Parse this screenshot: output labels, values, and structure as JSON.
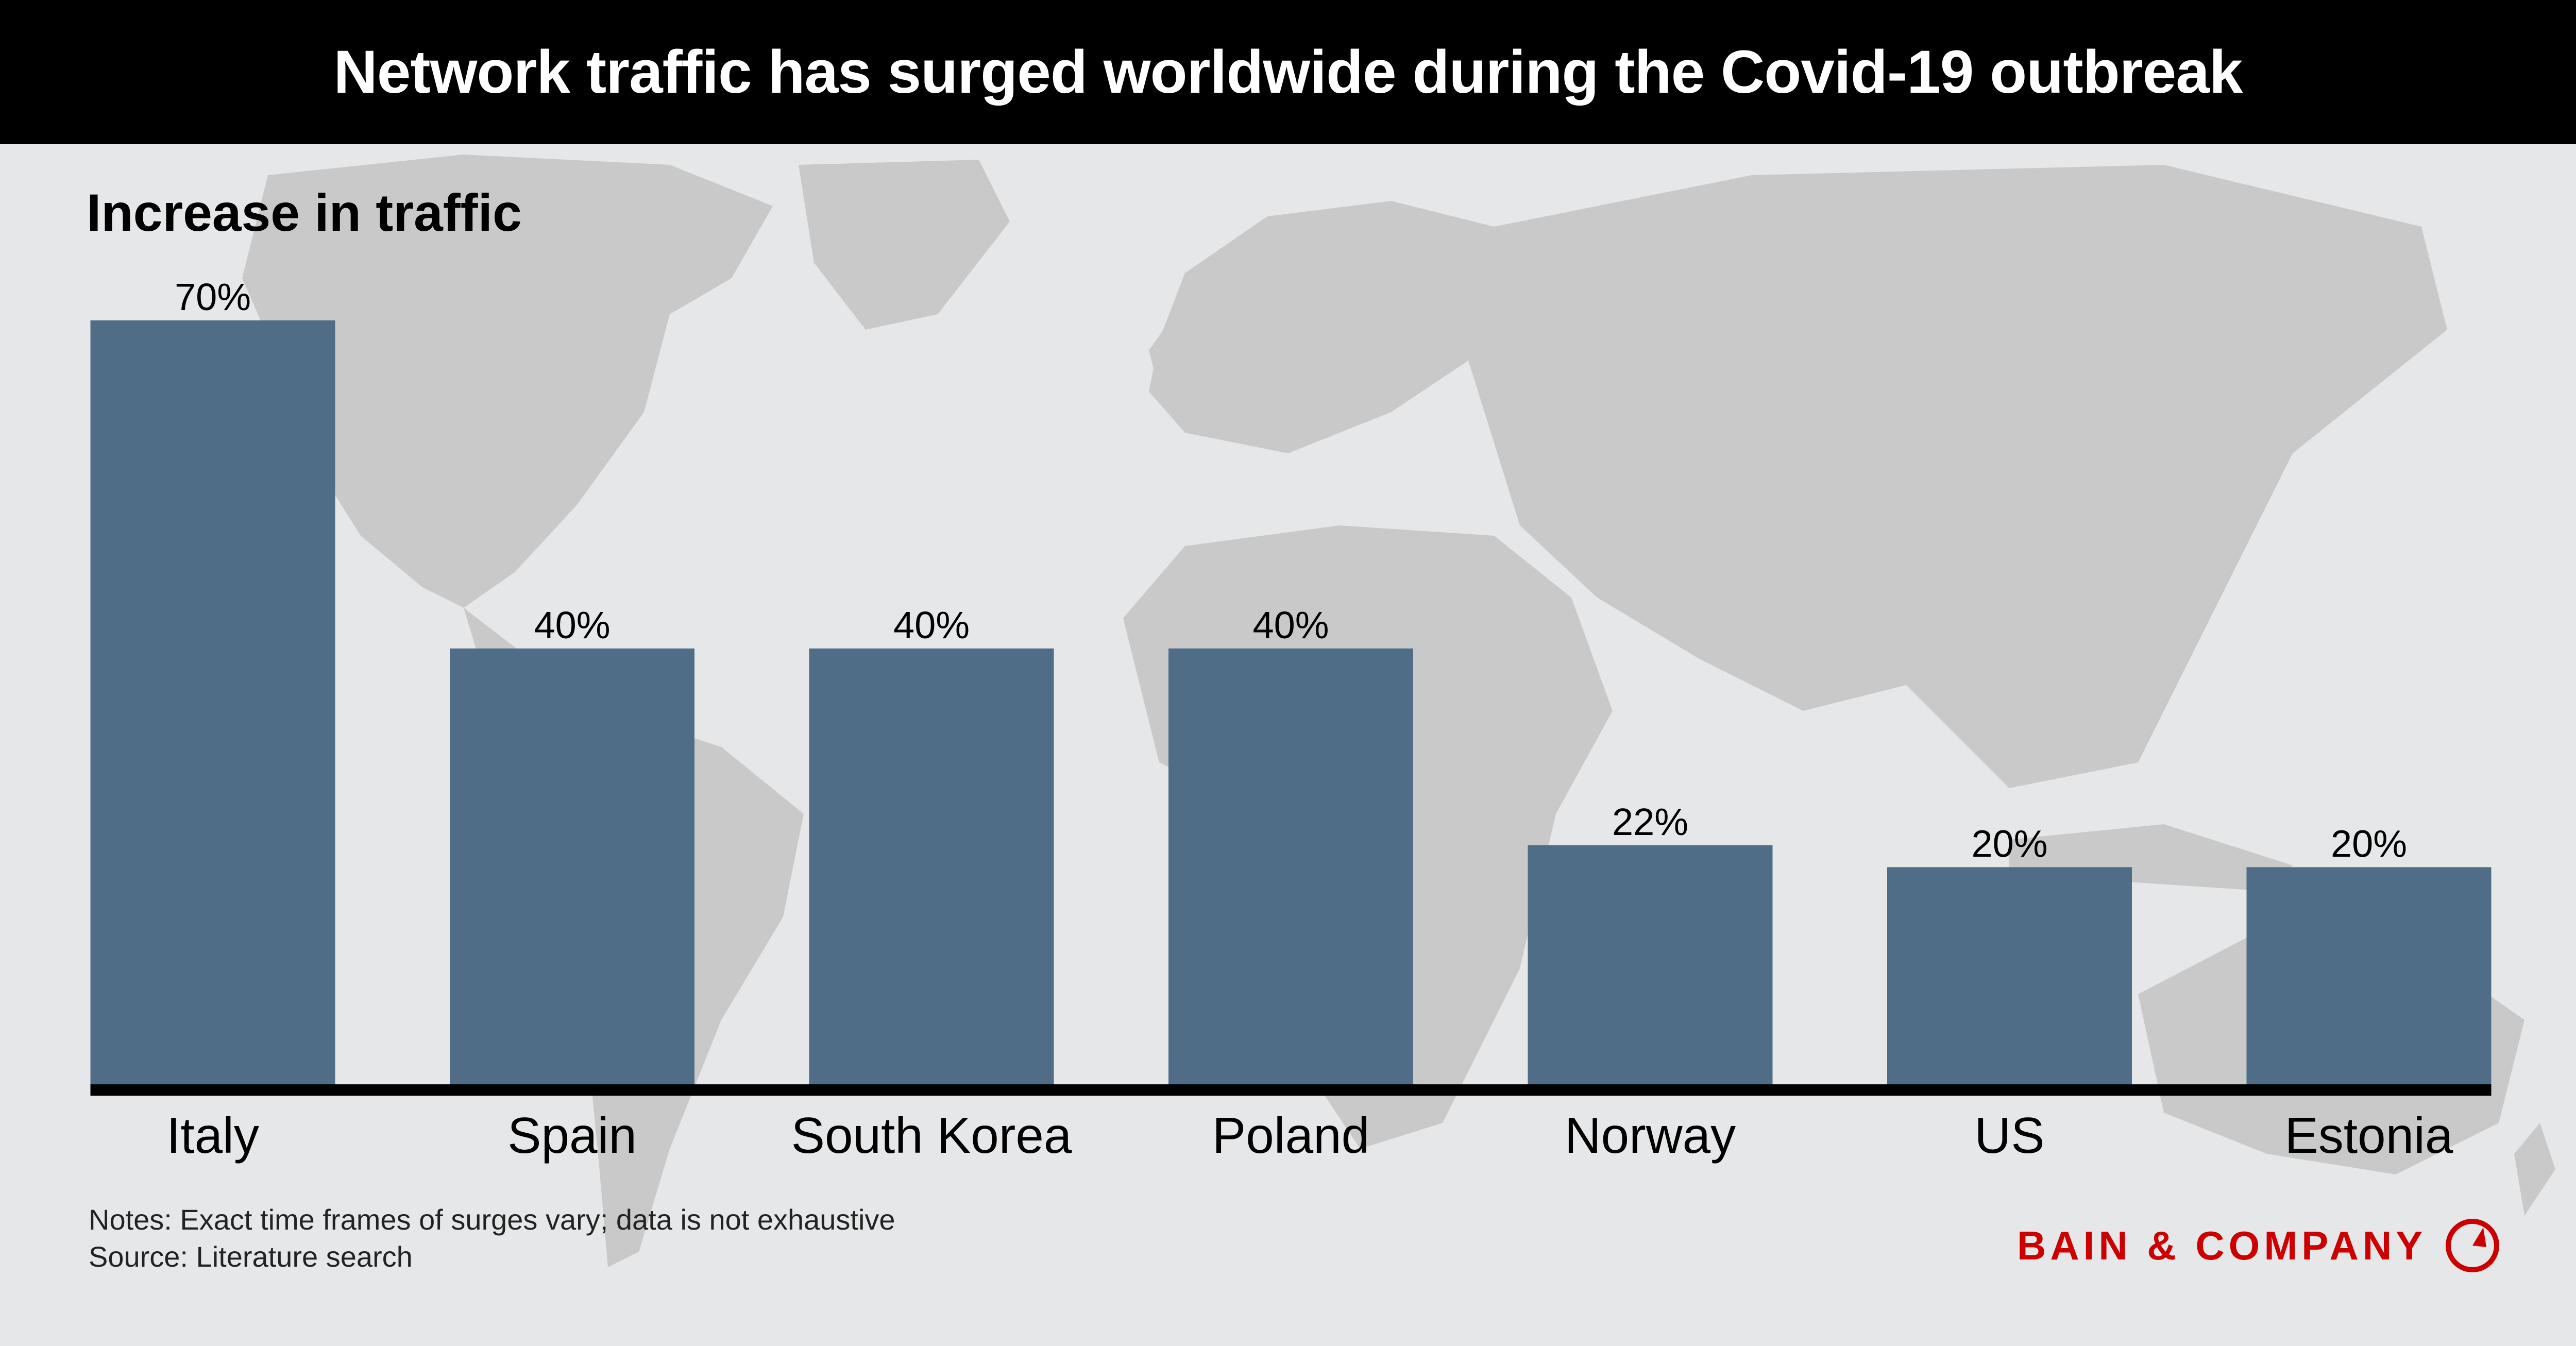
{
  "title": "Network traffic has surged worldwide during the Covid-19 outbreak",
  "subtitle": "Increase in traffic",
  "notes": "Notes: Exact time frames of surges vary; data is not exhaustive",
  "source": "Source: Literature search",
  "logo_text": "BAIN & COMPANY",
  "colors": {
    "bar": "#506d87",
    "background": "#e6e7e8",
    "map": "#c9c9c9",
    "brand": "#cc0000"
  },
  "chart_data": {
    "type": "bar",
    "title": "Network traffic has surged worldwide during the Covid-19 outbreak",
    "ylabel": "Increase in traffic",
    "categories": [
      "Italy",
      "Spain",
      "South Korea",
      "Poland",
      "Norway",
      "US",
      "Estonia"
    ],
    "values": [
      70,
      40,
      40,
      40,
      22,
      20,
      20
    ],
    "value_labels": [
      "70%",
      "40%",
      "40%",
      "40%",
      "22%",
      "20%",
      "20%"
    ],
    "ylim": [
      0,
      70
    ],
    "grid": false,
    "legend": "none"
  }
}
